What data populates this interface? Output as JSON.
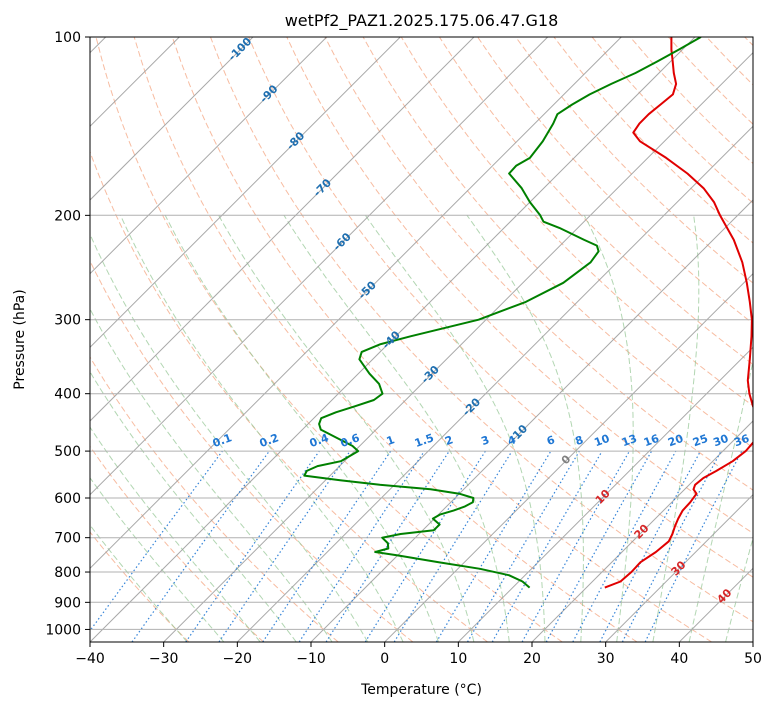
{
  "chart_data": {
    "type": "line",
    "title": "wetPf2_PAZ1.2025.175.06.47.G18",
    "xlabel": "Temperature (°C)",
    "ylabel": "Pressure (hPa)",
    "xlim": [
      -40,
      50
    ],
    "ylim": [
      1050,
      100
    ],
    "y_scale": "log",
    "grid": true,
    "x_ticks": [
      "−40",
      "−30",
      "−20",
      "−10",
      "0",
      "10",
      "20",
      "30",
      "40",
      "50"
    ],
    "y_ticks": [
      "100",
      "200",
      "300",
      "400",
      "500",
      "600",
      "700",
      "800",
      "900",
      "1000"
    ],
    "colors": {
      "temperature": "#e00000",
      "dewpoint": "#008000",
      "isotherm": "#9a9a9a",
      "dry_adiabat": "#f4a582",
      "moist_adiabat": "#98c898",
      "mixing_ratio": "#1f77d4",
      "isotherm_label": "#1f6fb0",
      "zero_label": "#808080",
      "warm_label": "#d62728"
    },
    "isotherm_labels": [
      {
        "t": -100,
        "p": 105,
        "text": "-100"
      },
      {
        "t": -90,
        "p": 125,
        "text": "-90"
      },
      {
        "t": -80,
        "p": 150,
        "text": "-80"
      },
      {
        "t": -70,
        "p": 180,
        "text": "-70"
      },
      {
        "t": -60,
        "p": 222,
        "text": "-60"
      },
      {
        "t": -50,
        "p": 268,
        "text": "-50"
      },
      {
        "t": -40,
        "p": 325,
        "text": "-40"
      },
      {
        "t": -30,
        "p": 372,
        "text": "-30"
      },
      {
        "t": -20,
        "p": 422,
        "text": "-20"
      },
      {
        "t": -10,
        "p": 468,
        "text": "-10"
      },
      {
        "t": 0,
        "p": 518,
        "text": "0"
      },
      {
        "t": 10,
        "p": 598,
        "text": "10"
      },
      {
        "t": 20,
        "p": 685,
        "text": "20"
      },
      {
        "t": 30,
        "p": 790,
        "text": "30"
      },
      {
        "t": 40,
        "p": 880,
        "text": "40"
      }
    ],
    "mixing_ratio_labels": [
      "0.1",
      "0.2",
      "0.4",
      "0.6",
      "1",
      "1.5",
      "2",
      "3",
      "4",
      "6",
      "8",
      "10",
      "13",
      "16",
      "20",
      "25",
      "30",
      "36"
    ],
    "series": [
      {
        "key": "temperature",
        "p": [
          850,
          830,
          800,
          770,
          740,
          710,
          690,
          670,
          650,
          630,
          610,
          590,
          580,
          570,
          555,
          540,
          520,
          500,
          480,
          460,
          440,
          420,
          400,
          380,
          350,
          320,
          300,
          280,
          260,
          240,
          220,
          200,
          190,
          180,
          170,
          160,
          150,
          145,
          140,
          135,
          130,
          125,
          120,
          115,
          110,
          105,
          100
        ],
        "t": [
          22.5,
          23.8,
          24.0,
          23.9,
          24.6,
          24.9,
          24.4,
          23.7,
          23.1,
          22.6,
          22.5,
          22.2,
          21.2,
          20.8,
          21.0,
          21.8,
          22.7,
          23.1,
          22.9,
          21.9,
          20.3,
          18.0,
          15.8,
          13.8,
          11.2,
          8.3,
          6.1,
          3.4,
          0.4,
          -3.0,
          -7.2,
          -12.4,
          -15.0,
          -18.3,
          -22.5,
          -27.5,
          -33.3,
          -35.4,
          -35.8,
          -35.8,
          -35.5,
          -35.2,
          -36.2,
          -38.0,
          -39.7,
          -41.5,
          -43.2
        ]
      },
      {
        "key": "dewpoint",
        "p": [
          850,
          830,
          810,
          790,
          770,
          750,
          740,
          730,
          715,
          700,
          690,
          680,
          665,
          650,
          640,
          630,
          620,
          610,
          600,
          590,
          580,
          570,
          560,
          550,
          540,
          530,
          520,
          500,
          490,
          475,
          460,
          450,
          440,
          430,
          420,
          410,
          400,
          385,
          370,
          350,
          340,
          330,
          320,
          300,
          280,
          260,
          240,
          230,
          225,
          220,
          210,
          205,
          200,
          190,
          180,
          170,
          165,
          160,
          150,
          140,
          135,
          130,
          125,
          120,
          115,
          110,
          105,
          100
        ],
        "t": [
          12.3,
          10.5,
          7.8,
          3.0,
          -3.5,
          -10.0,
          -13.5,
          -12.2,
          -13.0,
          -14.5,
          -12.5,
          -8.5,
          -8.5,
          -10.2,
          -9.8,
          -8.5,
          -7.5,
          -7.0,
          -7.5,
          -10.0,
          -14.5,
          -22.0,
          -28.0,
          -33.5,
          -33.8,
          -33.0,
          -30.5,
          -29.5,
          -31.0,
          -34.2,
          -37.5,
          -38.5,
          -39.0,
          -37.8,
          -36.0,
          -34.3,
          -34.0,
          -35.8,
          -38.5,
          -41.8,
          -42.5,
          -41.0,
          -38.0,
          -31.0,
          -27.0,
          -24.5,
          -23.6,
          -24.0,
          -25.0,
          -27.5,
          -32.5,
          -35.5,
          -36.8,
          -40.0,
          -43.0,
          -46.7,
          -46.8,
          -46.0,
          -46.5,
          -47.5,
          -48.2,
          -47.5,
          -46.5,
          -45.0,
          -43.2,
          -41.8,
          -40.5,
          -39.2
        ]
      }
    ]
  }
}
